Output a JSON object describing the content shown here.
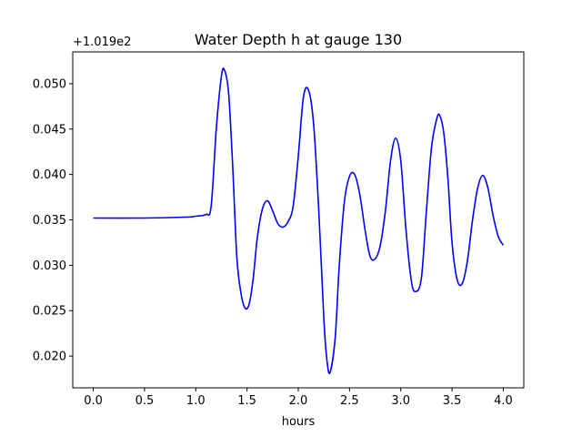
{
  "chart_data": {
    "type": "line",
    "title": "Water Depth h at gauge 130",
    "xlabel": "hours",
    "ylabel": "",
    "y_offset_label": "+1.019e2",
    "xlim": [
      -0.2,
      4.2
    ],
    "ylim": [
      0.0165,
      0.0535
    ],
    "x_ticks": [
      0.0,
      0.5,
      1.0,
      1.5,
      2.0,
      2.5,
      3.0,
      3.5,
      4.0
    ],
    "x_tick_labels": [
      "0.0",
      "0.5",
      "1.0",
      "1.5",
      "2.0",
      "2.5",
      "3.0",
      "3.5",
      "4.0"
    ],
    "y_ticks": [
      0.02,
      0.025,
      0.03,
      0.035,
      0.04,
      0.045,
      0.05
    ],
    "y_tick_labels": [
      "0.020",
      "0.025",
      "0.030",
      "0.035",
      "0.040",
      "0.045",
      "0.050"
    ],
    "grid": false,
    "series": [
      {
        "color": "#0000ff",
        "x": [
          0.0,
          0.5,
          0.9,
          1.0,
          1.1,
          1.15,
          1.2,
          1.25,
          1.28,
          1.32,
          1.36,
          1.4,
          1.44,
          1.48,
          1.52,
          1.56,
          1.6,
          1.65,
          1.7,
          1.75,
          1.8,
          1.85,
          1.9,
          1.95,
          2.0,
          2.05,
          2.1,
          2.15,
          2.2,
          2.25,
          2.28,
          2.31,
          2.36,
          2.4,
          2.45,
          2.5,
          2.55,
          2.6,
          2.65,
          2.7,
          2.75,
          2.8,
          2.85,
          2.9,
          2.95,
          3.0,
          3.05,
          3.1,
          3.14,
          3.2,
          3.25,
          3.3,
          3.35,
          3.38,
          3.42,
          3.46,
          3.5,
          3.55,
          3.6,
          3.65,
          3.7,
          3.75,
          3.8,
          3.85,
          3.9,
          3.95,
          4.0
        ],
        "y": [
          0.0352,
          0.0352,
          0.0353,
          0.0354,
          0.0356,
          0.0365,
          0.045,
          0.0508,
          0.0515,
          0.049,
          0.041,
          0.031,
          0.027,
          0.0253,
          0.0257,
          0.0285,
          0.033,
          0.0362,
          0.0371,
          0.036,
          0.0346,
          0.0342,
          0.0348,
          0.0365,
          0.042,
          0.0485,
          0.0493,
          0.0455,
          0.036,
          0.024,
          0.0195,
          0.0182,
          0.022,
          0.03,
          0.037,
          0.0398,
          0.04,
          0.0378,
          0.034,
          0.031,
          0.0307,
          0.0322,
          0.036,
          0.0415,
          0.044,
          0.0415,
          0.034,
          0.0285,
          0.0271,
          0.0285,
          0.036,
          0.043,
          0.0461,
          0.0465,
          0.0445,
          0.0395,
          0.0325,
          0.0284,
          0.028,
          0.0305,
          0.035,
          0.0385,
          0.0399,
          0.0385,
          0.0355,
          0.0332,
          0.0322
        ]
      }
    ]
  }
}
